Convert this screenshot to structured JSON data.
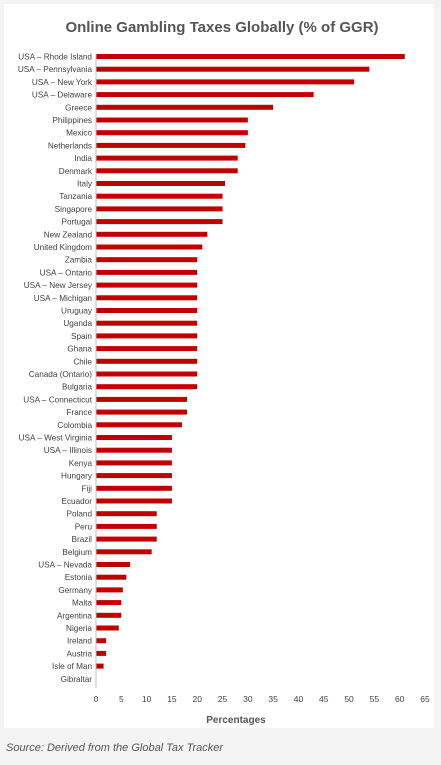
{
  "chart_data": {
    "type": "bar",
    "orientation": "horizontal",
    "title": "Online Gambling Taxes Globally (% of GGR)",
    "xlabel": "Percentages",
    "ylabel": "",
    "xlim": [
      0,
      65
    ],
    "xticks": [
      0,
      5,
      10,
      15,
      20,
      25,
      30,
      35,
      40,
      45,
      50,
      55,
      60,
      65
    ],
    "grid": false,
    "legend": "none",
    "bar_color": "#c00000",
    "categories": [
      "USA – Rhode Island",
      "USA – Pennsylvania",
      "USA – New York",
      "USA – Delaware",
      "Greece",
      "Philippines",
      "Mexico",
      "Netherlands",
      "India",
      "Denmark",
      "Italy",
      "Tanzania",
      "Singapore",
      "Portugal",
      "New Zealand",
      "United Kingdom",
      "Zambia",
      "USA – Ontario",
      "USA – New Jersey",
      "USA – Michigan",
      "Uruguay",
      "Uganda",
      "Spain",
      "Ghana",
      "Chile",
      "Canada (Ontario)",
      "Bulgaria",
      "USA – Connecticut",
      "France",
      "Colombia",
      "USA – West Virginia",
      "USA – Illinois",
      "Kenya",
      "Hungary",
      "Fiji",
      "Ecuador",
      "Poland",
      "Peru",
      "Brazil",
      "Belgium",
      "USA – Nevada",
      "Estonia",
      "Germany",
      "Malta",
      "Argentina",
      "Nigeria",
      "Ireland",
      "Austria",
      "Isle of Man",
      "Gibraltar"
    ],
    "values": [
      61,
      54,
      51,
      43,
      35,
      30,
      30,
      29.5,
      28,
      28,
      25.5,
      25,
      25,
      25,
      22,
      21,
      20,
      20,
      20,
      20,
      20,
      20,
      20,
      20,
      20,
      20,
      20,
      18,
      18,
      17,
      15,
      15,
      15,
      15,
      15,
      15,
      12,
      12,
      12,
      11,
      6.75,
      6,
      5.3,
      5,
      5,
      4.5,
      2,
      2,
      1.5,
      0.1
    ]
  },
  "source": "Source: Derived from the Global Tax Tracker"
}
